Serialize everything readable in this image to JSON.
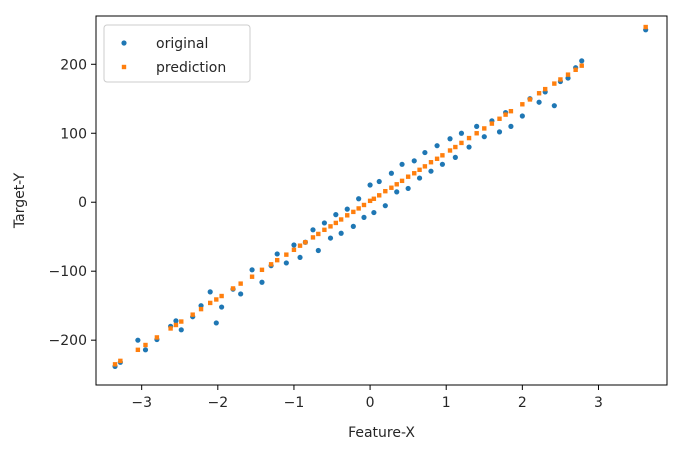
{
  "chart_data": {
    "type": "scatter",
    "title": "",
    "xlabel": "Feature-X",
    "ylabel": "Target-Y",
    "xlim": [
      -3.6,
      3.9
    ],
    "ylim": [
      -265,
      270
    ],
    "xticks": [
      -3,
      -2,
      -1,
      0,
      1,
      2,
      3
    ],
    "xtick_labels": [
      "−3",
      "−2",
      "−1",
      "0",
      "1",
      "2",
      "3"
    ],
    "yticks": [
      -200,
      -100,
      0,
      100,
      200
    ],
    "ytick_labels": [
      "−200",
      "−100",
      "0",
      "100",
      "200"
    ],
    "grid": false,
    "legend_position": "upper-left",
    "series": [
      {
        "name": "original",
        "color": "#1f77b4",
        "marker": "circle",
        "points": [
          [
            -3.35,
            -238
          ],
          [
            -3.28,
            -232
          ],
          [
            -3.05,
            -200
          ],
          [
            -2.95,
            -214
          ],
          [
            -2.8,
            -199
          ],
          [
            -2.62,
            -180
          ],
          [
            -2.55,
            -172
          ],
          [
            -2.48,
            -185
          ],
          [
            -2.33,
            -166
          ],
          [
            -2.22,
            -150
          ],
          [
            -2.1,
            -130
          ],
          [
            -2.02,
            -175
          ],
          [
            -1.95,
            -152
          ],
          [
            -1.8,
            -126
          ],
          [
            -1.7,
            -133
          ],
          [
            -1.55,
            -98
          ],
          [
            -1.42,
            -116
          ],
          [
            -1.3,
            -92
          ],
          [
            -1.22,
            -75
          ],
          [
            -1.1,
            -88
          ],
          [
            -1.0,
            -62
          ],
          [
            -0.92,
            -80
          ],
          [
            -0.85,
            -58
          ],
          [
            -0.75,
            -40
          ],
          [
            -0.68,
            -70
          ],
          [
            -0.6,
            -30
          ],
          [
            -0.52,
            -52
          ],
          [
            -0.45,
            -18
          ],
          [
            -0.38,
            -45
          ],
          [
            -0.3,
            -10
          ],
          [
            -0.22,
            -35
          ],
          [
            -0.15,
            5
          ],
          [
            -0.08,
            -22
          ],
          [
            0.0,
            25
          ],
          [
            0.05,
            -15
          ],
          [
            0.12,
            30
          ],
          [
            0.2,
            -5
          ],
          [
            0.28,
            42
          ],
          [
            0.35,
            15
          ],
          [
            0.42,
            55
          ],
          [
            0.5,
            20
          ],
          [
            0.58,
            60
          ],
          [
            0.65,
            35
          ],
          [
            0.72,
            72
          ],
          [
            0.8,
            45
          ],
          [
            0.88,
            82
          ],
          [
            0.95,
            55
          ],
          [
            1.05,
            92
          ],
          [
            1.12,
            65
          ],
          [
            1.2,
            100
          ],
          [
            1.3,
            80
          ],
          [
            1.4,
            110
          ],
          [
            1.5,
            95
          ],
          [
            1.6,
            118
          ],
          [
            1.7,
            102
          ],
          [
            1.78,
            130
          ],
          [
            1.85,
            110
          ],
          [
            2.0,
            125
          ],
          [
            2.1,
            150
          ],
          [
            2.22,
            145
          ],
          [
            2.3,
            160
          ],
          [
            2.42,
            140
          ],
          [
            2.5,
            175
          ],
          [
            2.6,
            180
          ],
          [
            2.7,
            195
          ],
          [
            2.78,
            205
          ],
          [
            3.62,
            250
          ]
        ]
      },
      {
        "name": "prediction",
        "color": "#ff7f0e",
        "marker": "square",
        "points": [
          [
            -3.35,
            -235
          ],
          [
            -3.28,
            -230
          ],
          [
            -3.05,
            -214
          ],
          [
            -2.95,
            -207
          ],
          [
            -2.8,
            -196
          ],
          [
            -2.62,
            -183
          ],
          [
            -2.55,
            -178
          ],
          [
            -2.48,
            -173
          ],
          [
            -2.33,
            -163
          ],
          [
            -2.22,
            -155
          ],
          [
            -2.1,
            -146
          ],
          [
            -2.02,
            -141
          ],
          [
            -1.95,
            -136
          ],
          [
            -1.8,
            -125
          ],
          [
            -1.7,
            -118
          ],
          [
            -1.55,
            -108
          ],
          [
            -1.42,
            -98
          ],
          [
            -1.3,
            -90
          ],
          [
            -1.22,
            -84
          ],
          [
            -1.1,
            -76
          ],
          [
            -1.0,
            -69
          ],
          [
            -0.92,
            -63
          ],
          [
            -0.85,
            -58
          ],
          [
            -0.75,
            -51
          ],
          [
            -0.68,
            -46
          ],
          [
            -0.6,
            -40
          ],
          [
            -0.52,
            -35
          ],
          [
            -0.45,
            -30
          ],
          [
            -0.38,
            -25
          ],
          [
            -0.3,
            -19
          ],
          [
            -0.22,
            -14
          ],
          [
            -0.15,
            -9
          ],
          [
            -0.08,
            -4
          ],
          [
            0.0,
            2
          ],
          [
            0.05,
            5
          ],
          [
            0.12,
            10
          ],
          [
            0.2,
            16
          ],
          [
            0.28,
            21
          ],
          [
            0.35,
            26
          ],
          [
            0.42,
            31
          ],
          [
            0.5,
            37
          ],
          [
            0.58,
            42
          ],
          [
            0.65,
            47
          ],
          [
            0.72,
            52
          ],
          [
            0.8,
            58
          ],
          [
            0.88,
            63
          ],
          [
            0.95,
            68
          ],
          [
            1.05,
            75
          ],
          [
            1.12,
            80
          ],
          [
            1.2,
            86
          ],
          [
            1.3,
            93
          ],
          [
            1.4,
            100
          ],
          [
            1.5,
            107
          ],
          [
            1.6,
            114
          ],
          [
            1.7,
            121
          ],
          [
            1.78,
            127
          ],
          [
            1.85,
            132
          ],
          [
            2.0,
            142
          ],
          [
            2.1,
            149
          ],
          [
            2.22,
            158
          ],
          [
            2.3,
            164
          ],
          [
            2.42,
            172
          ],
          [
            2.5,
            178
          ],
          [
            2.6,
            185
          ],
          [
            2.7,
            192
          ],
          [
            2.78,
            198
          ],
          [
            3.62,
            254
          ]
        ]
      }
    ]
  }
}
